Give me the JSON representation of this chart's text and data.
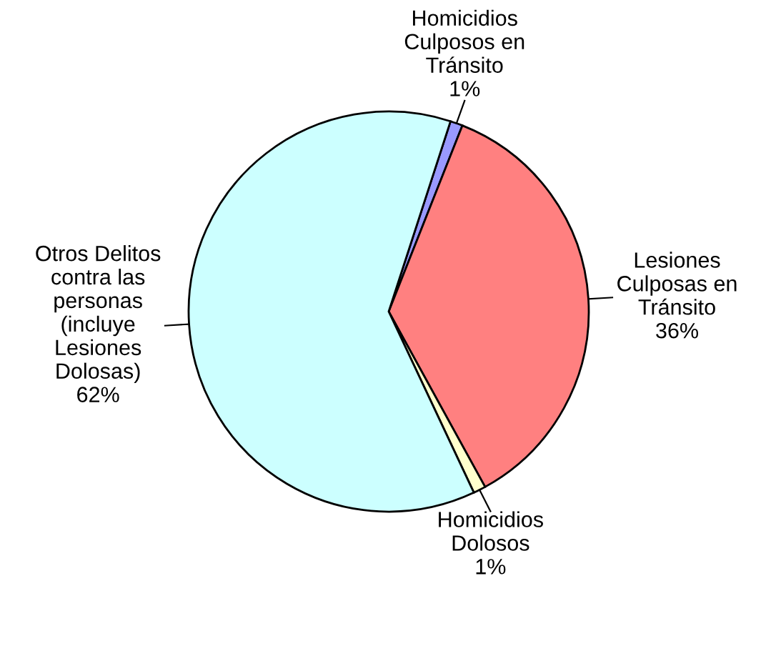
{
  "chart_data": {
    "type": "pie",
    "categories": [
      "Homicidios\nCulposos en\nTránsito",
      "Lesiones\nCulposas en\nTránsito",
      "Homicidios\nDolosos",
      "Otros Delitos\ncontra las\npersonas\n(incluye\nLesiones\nDolosas)"
    ],
    "values": [
      1,
      36,
      1,
      62
    ],
    "value_labels": [
      "1%",
      "36%",
      "1%",
      "62%"
    ],
    "colors": [
      "#9999ff",
      "#ff8080",
      "#ffffcc",
      "#ccffff"
    ],
    "legend": false
  }
}
